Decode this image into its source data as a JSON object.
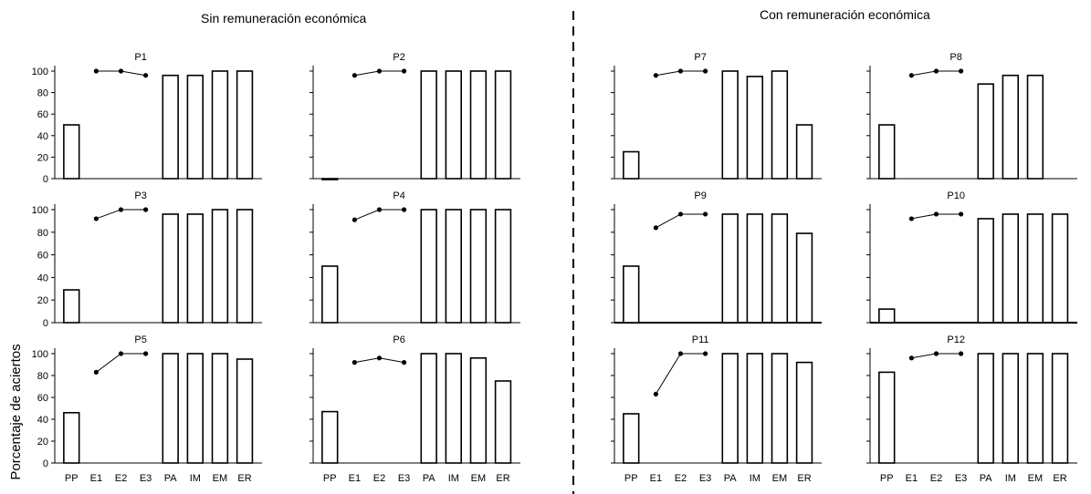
{
  "headers": {
    "left": "Sin remuneración económica",
    "right": "Con remuneración económica"
  },
  "ylabel": "Porcentaje de aciertos",
  "chart_data": {
    "type": "bar",
    "categories": [
      "PP",
      "E1",
      "E2",
      "E3",
      "PA",
      "IM",
      "EM",
      "ER"
    ],
    "bar_categories": [
      "PP",
      "PA",
      "IM",
      "EM",
      "ER"
    ],
    "line_categories": [
      "E1",
      "E2",
      "E3"
    ],
    "yticks": [
      0,
      20,
      40,
      60,
      80,
      100
    ],
    "ylim": [
      0,
      100
    ],
    "panels": [
      {
        "name": "P1",
        "bars": [
          50,
          96,
          96,
          100,
          100
        ],
        "line": [
          100,
          100,
          96
        ]
      },
      {
        "name": "P2",
        "bars": [
          0,
          100,
          100,
          100,
          100
        ],
        "line": [
          96,
          100,
          100
        ]
      },
      {
        "name": "P3",
        "bars": [
          29,
          96,
          96,
          100,
          100
        ],
        "line": [
          92,
          100,
          100
        ]
      },
      {
        "name": "P4",
        "bars": [
          50,
          100,
          100,
          100,
          100
        ],
        "line": [
          91,
          100,
          100
        ]
      },
      {
        "name": "P5",
        "bars": [
          46,
          100,
          100,
          100,
          95
        ],
        "line": [
          83,
          100,
          100
        ]
      },
      {
        "name": "P6",
        "bars": [
          47,
          100,
          100,
          96,
          75
        ],
        "line": [
          92,
          96,
          92
        ]
      },
      {
        "name": "P7",
        "bars": [
          25,
          100,
          95,
          100,
          50
        ],
        "line": [
          96,
          100,
          100
        ]
      },
      {
        "name": "P8",
        "bars": [
          50,
          88,
          96,
          96,
          null
        ],
        "line": [
          96,
          100,
          100
        ]
      },
      {
        "name": "P9",
        "bars": [
          50,
          96,
          96,
          96,
          79
        ],
        "line": [
          84,
          96,
          96
        ]
      },
      {
        "name": "P10",
        "bars": [
          12,
          92,
          96,
          96,
          96
        ],
        "line": [
          92,
          96,
          96
        ]
      },
      {
        "name": "P11",
        "bars": [
          45,
          100,
          100,
          100,
          92
        ],
        "line": [
          63,
          100,
          100
        ]
      },
      {
        "name": "P12",
        "bars": [
          83,
          100,
          100,
          100,
          100
        ],
        "line": [
          96,
          100,
          100
        ]
      }
    ]
  }
}
